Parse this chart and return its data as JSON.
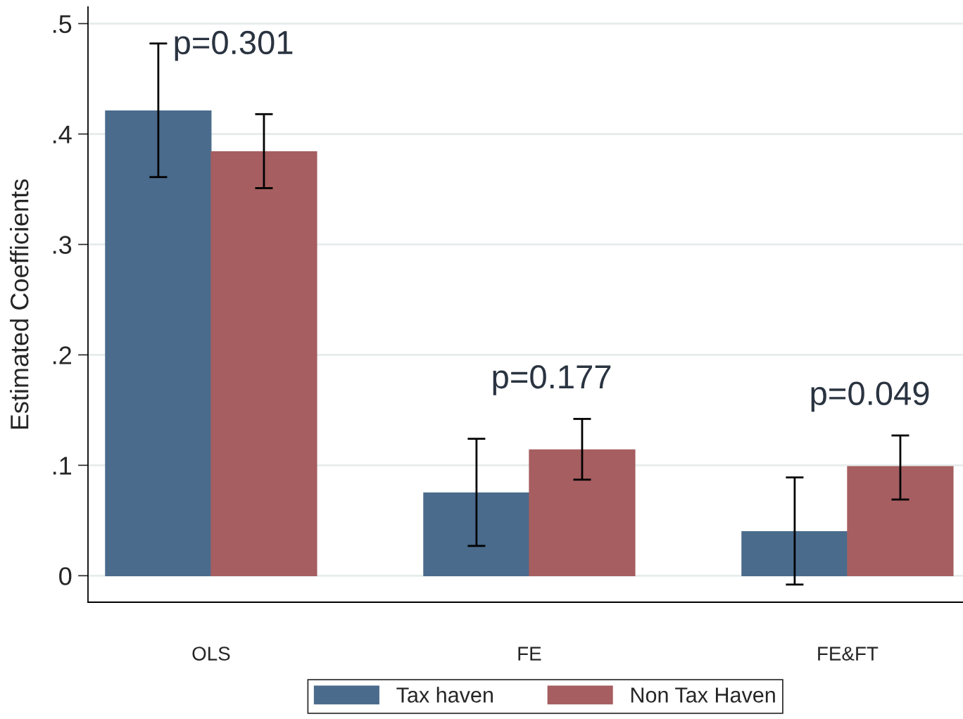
{
  "chart_data": {
    "type": "bar",
    "ylabel": "Estimated Coefficients",
    "categories": [
      "OLS",
      "FE",
      "FE&FT"
    ],
    "series": [
      {
        "name": "Tax haven",
        "color": "#4a6b8c",
        "values": [
          0.421,
          0.075,
          0.04
        ],
        "errors": [
          [
            0.361,
            0.482
          ],
          [
            0.027,
            0.124
          ],
          [
            -0.008,
            0.089
          ]
        ]
      },
      {
        "name": "Non Tax Haven",
        "color": "#a65e60",
        "values": [
          0.384,
          0.114,
          0.099
        ],
        "errors": [
          [
            0.351,
            0.418
          ],
          [
            0.087,
            0.142
          ],
          [
            0.069,
            0.127
          ]
        ]
      }
    ],
    "ylim": [
      -0.024,
      0.515
    ],
    "yticks": [
      {
        "value": 0,
        "label": "0"
      },
      {
        "value": 0.1,
        "label": ".1"
      },
      {
        "value": 0.2,
        "label": ".2"
      },
      {
        "value": 0.3,
        "label": ".3"
      },
      {
        "value": 0.4,
        "label": ".4"
      },
      {
        "value": 0.5,
        "label": ".5"
      }
    ],
    "annotations": [
      "p=0.301",
      "p=0.177",
      "p=0.049"
    ],
    "grid": "y",
    "legend": "bottom"
  }
}
